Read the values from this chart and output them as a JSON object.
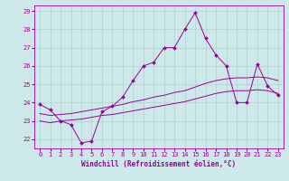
{
  "xlabel": "Windchill (Refroidissement éolien,°C)",
  "xlim": [
    -0.5,
    23.5
  ],
  "ylim": [
    21.5,
    29.3
  ],
  "yticks": [
    22,
    23,
    24,
    25,
    26,
    27,
    28,
    29
  ],
  "xticks": [
    0,
    1,
    2,
    3,
    4,
    5,
    6,
    7,
    8,
    9,
    10,
    11,
    12,
    13,
    14,
    15,
    16,
    17,
    18,
    19,
    20,
    21,
    22,
    23
  ],
  "bg_color": "#cce8e8",
  "line_color": "#990099",
  "grid_color": "#b0d0d0",
  "line1_x": [
    0,
    1,
    2,
    3,
    4,
    5,
    6,
    7,
    8,
    9,
    10,
    11,
    12,
    13,
    14,
    15,
    16,
    17,
    18,
    19,
    20,
    21,
    22,
    23
  ],
  "line1_y": [
    23.9,
    23.6,
    23.0,
    22.8,
    21.8,
    21.9,
    23.5,
    23.8,
    24.3,
    25.2,
    26.0,
    26.2,
    27.0,
    27.0,
    28.0,
    28.9,
    27.5,
    26.6,
    26.0,
    24.0,
    24.0,
    26.1,
    24.9,
    24.4
  ],
  "line2_x": [
    0,
    1,
    2,
    3,
    4,
    5,
    6,
    7,
    8,
    9,
    10,
    11,
    12,
    13,
    14,
    15,
    16,
    17,
    18,
    19,
    20,
    21,
    22,
    23
  ],
  "line2_y": [
    23.0,
    22.9,
    23.0,
    23.05,
    23.1,
    23.2,
    23.3,
    23.35,
    23.45,
    23.55,
    23.65,
    23.75,
    23.85,
    23.95,
    24.05,
    24.2,
    24.35,
    24.5,
    24.6,
    24.65,
    24.65,
    24.7,
    24.65,
    24.5
  ],
  "line3_x": [
    0,
    1,
    2,
    3,
    4,
    5,
    6,
    7,
    8,
    9,
    10,
    11,
    12,
    13,
    14,
    15,
    16,
    17,
    18,
    19,
    20,
    21,
    22,
    23
  ],
  "line3_y": [
    23.4,
    23.3,
    23.35,
    23.4,
    23.5,
    23.6,
    23.7,
    23.8,
    23.9,
    24.05,
    24.15,
    24.3,
    24.4,
    24.55,
    24.65,
    24.85,
    25.05,
    25.2,
    25.3,
    25.35,
    25.35,
    25.4,
    25.35,
    25.2
  ]
}
